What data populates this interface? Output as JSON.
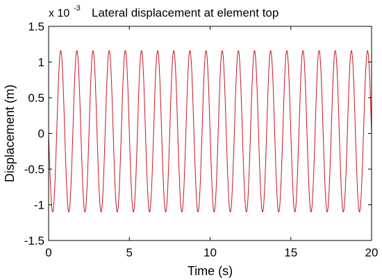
{
  "chart_data": {
    "type": "line",
    "title": "Lateral displacement at element top",
    "xlabel": "Time (s)",
    "ylabel": "Displacement (m)",
    "y_exponent": {
      "base": "x 10",
      "power": "-3"
    },
    "xlim": [
      0,
      20
    ],
    "ylim": [
      -1.5,
      1.5
    ],
    "x_ticks": [
      0,
      5,
      10,
      15,
      20
    ],
    "x_tick_labels": [
      "0",
      "5",
      "10",
      "15",
      "20"
    ],
    "y_ticks": [
      1.5,
      1,
      0.5,
      0,
      -0.5,
      -1,
      -1.5
    ],
    "y_tick_labels": [
      "1.5",
      "1",
      "0.5",
      "0",
      "-0.5",
      "-1",
      "-1.5"
    ],
    "grid": false,
    "series": [
      {
        "color": "#c8141e",
        "signal": {
          "form": "sinusoid",
          "amplitude_max": 1.16,
          "amplitude_min": -1.1,
          "period": 1.0,
          "peak_times": [
            0.75,
            1.75,
            2.75,
            3.75,
            4.75,
            5.75,
            6.75,
            7.75,
            8.75,
            9.75,
            10.75,
            11.75,
            12.75,
            13.75,
            14.75,
            15.75,
            16.75,
            17.75,
            18.75,
            19.75
          ],
          "trough_times": [
            0.25,
            1.25,
            2.25,
            3.25,
            4.25,
            5.25,
            6.25,
            7.25,
            8.25,
            9.25,
            10.25,
            11.25,
            12.25,
            13.25,
            14.25,
            15.25,
            16.25,
            17.25,
            18.25,
            19.25
          ],
          "start": [
            0,
            0
          ],
          "end": [
            20,
            0.2
          ]
        }
      }
    ]
  }
}
